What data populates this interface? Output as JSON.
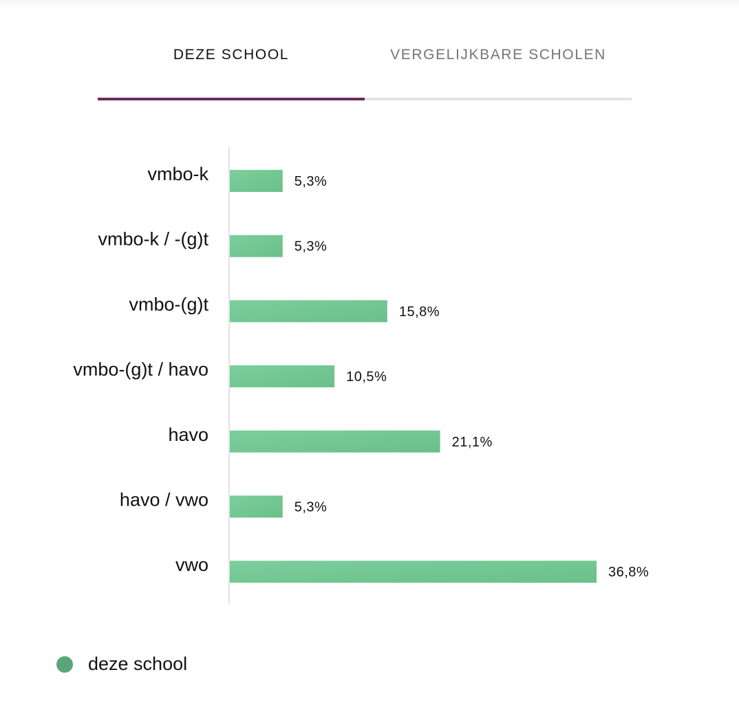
{
  "tabs": {
    "active_label": "DEZE SCHOOL",
    "inactive_label": "VERGELIJKBARE SCHOLEN"
  },
  "colors": {
    "tab_indicator": "#6b2a5e",
    "bar_light": "#7ccf9c",
    "bar_dark": "#6abf8a",
    "legend_dot": "#5aa67a"
  },
  "chart_data": {
    "type": "bar",
    "orientation": "horizontal",
    "categories": [
      "vmbo-k",
      "vmbo-k / -(g)t",
      "vmbo-(g)t",
      "vmbo-(g)t / havo",
      "havo",
      "havo / vwo",
      "vwo"
    ],
    "series": [
      {
        "name": "deze school",
        "values": [
          5.3,
          5.3,
          15.8,
          10.5,
          21.1,
          5.3,
          36.8
        ],
        "labels": [
          "5,3%",
          "5,3%",
          "15,8%",
          "10,5%",
          "21,1%",
          "5,3%",
          "36,8%"
        ]
      }
    ],
    "xlim": [
      0,
      36.8
    ],
    "grid": false,
    "legend": "bottom-left"
  },
  "legend": {
    "label": "deze school"
  }
}
